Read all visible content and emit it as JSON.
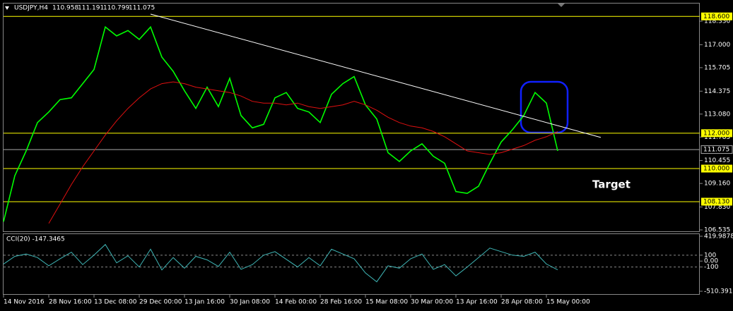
{
  "chart_data": [
    {
      "type": "line",
      "title": "USDJPY,H4",
      "ohlc": [
        110.958,
        111.191,
        110.799,
        111.075
      ],
      "ylim": [
        106.455,
        118.81
      ],
      "yticks": [
        {
          "value": 118.33,
          "label": "118.330"
        },
        {
          "value": 117,
          "label": "117.000"
        },
        {
          "value": 115.705,
          "label": "115.705"
        },
        {
          "value": 114.375,
          "label": "114.375"
        },
        {
          "value": 113.08,
          "label": "113.080"
        },
        {
          "value": 111.785,
          "label": "111.785"
        },
        {
          "value": 110.455,
          "label": "110.455"
        },
        {
          "value": 109.16,
          "label": "109.160"
        },
        {
          "value": 107.83,
          "label": "107.830"
        },
        {
          "value": 106.535,
          "label": "106.535"
        }
      ],
      "levels": [
        {
          "value": 118.6,
          "label": "118.600"
        },
        {
          "value": 112,
          "label": "112.000"
        },
        {
          "value": 110,
          "label": "110.000"
        },
        {
          "value": 108.13,
          "label": "108.130"
        }
      ],
      "level_color": "#ffff00",
      "current": {
        "value": 111.075,
        "label": "111.075"
      },
      "trendline": {
        "start": 118.73,
        "end": 111.76,
        "color": "#ffffff"
      },
      "annotation": "Target",
      "series": [
        {
          "color": "#00ff00",
          "values": [
            107.0,
            109.6,
            111.0,
            112.6,
            113.2,
            113.9,
            114.0,
            114.8,
            115.6,
            118.0,
            117.5,
            117.8,
            117.3,
            118.0,
            116.3,
            115.5,
            114.4,
            113.4,
            114.6,
            113.5,
            115.1,
            113.0,
            112.3,
            112.5,
            114.0,
            114.3,
            113.4,
            113.2,
            112.6,
            114.2,
            114.8,
            115.2,
            113.6,
            112.8,
            110.9,
            110.4,
            111.0,
            111.4,
            110.7,
            110.3,
            108.7,
            108.6,
            109.0,
            110.3,
            111.5,
            112.2,
            113.0,
            114.3,
            113.7,
            111.0
          ]
        },
        {
          "color": "#e01010",
          "values": [
            null,
            null,
            null,
            null,
            106.9,
            108.0,
            109.1,
            110.1,
            111.0,
            111.9,
            112.7,
            113.4,
            114.0,
            114.5,
            114.8,
            114.9,
            114.8,
            114.6,
            114.5,
            114.4,
            114.3,
            114.1,
            113.8,
            113.7,
            113.7,
            113.6,
            113.7,
            113.5,
            113.4,
            113.5,
            113.6,
            113.8,
            113.6,
            113.3,
            112.9,
            112.6,
            112.4,
            112.3,
            112.1,
            111.8,
            111.4,
            111.0,
            110.9,
            110.8,
            110.9,
            111.1,
            111.3,
            111.6,
            111.8,
            112.1
          ]
        }
      ]
    },
    {
      "type": "line",
      "title": "CCI(20) -147.3465",
      "ylim": [
        -510.3915,
        419.9878
      ],
      "yticks": [
        419.9878,
        100,
        {
          "value": 0,
          "label": "0.00"
        },
        -100,
        -510.3915
      ],
      "levels": [
        100,
        -100
      ],
      "series": [
        {
          "color": "#3fb6b6",
          "values": [
            -50,
            80,
            120,
            60,
            -80,
            40,
            150,
            -60,
            100,
            280,
            -30,
            90,
            -100,
            200,
            -150,
            60,
            -120,
            80,
            20,
            -90,
            150,
            -140,
            -60,
            100,
            160,
            30,
            -100,
            60,
            -80,
            200,
            120,
            40,
            -200,
            -350,
            -80,
            -120,
            40,
            120,
            -140,
            -60,
            -250,
            -100,
            60,
            220,
            160,
            100,
            80,
            150,
            -50,
            -147.3465
          ]
        }
      ]
    }
  ],
  "time_axis": [
    "14 Nov 2016",
    "28 Nov 16:00",
    "13 Dec 08:00",
    "29 Dec 00:00",
    "13 Jan 16:00",
    "30 Jan 08:00",
    "14 Feb 00:00",
    "28 Feb 16:00",
    "15 Mar 08:00",
    "30 Mar 00:00",
    "13 Apr 16:00",
    "28 Apr 08:00",
    "15 May 00:00"
  ]
}
